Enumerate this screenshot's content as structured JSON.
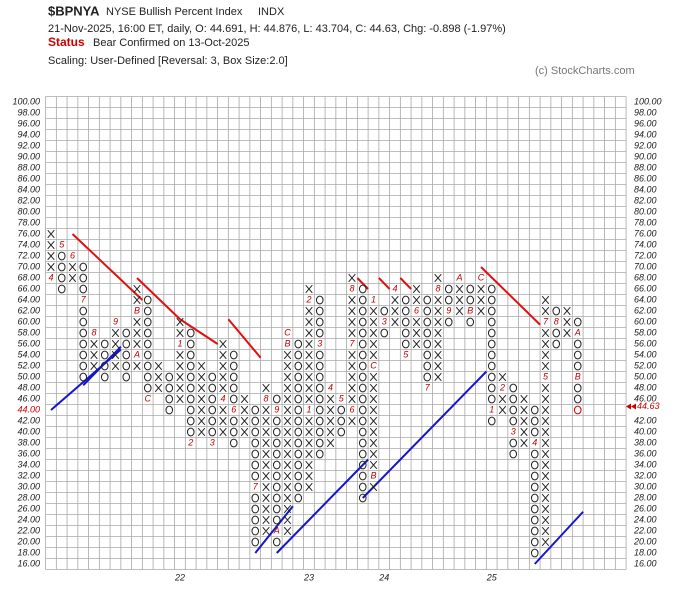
{
  "chart_data": {
    "type": "point-and-figure",
    "title": "$BPNYA",
    "subtitle": "NYSE Bullish Percent Index",
    "exchange": "INDX",
    "info": "21-Nov-2025, 16:00 ET, daily, O: 44.691, H: 44.876, L: 43.704, C: 44.63, Chg: -0.898 (-1.97%)",
    "status_label": "Status",
    "status": "Bear Confirmed on 13-Oct-2025",
    "scaling": "Scaling: User-Defined [Reversal: 3, Box Size:2.0]",
    "copyright": "(c) StockCharts.com",
    "box_size": 2,
    "grid": true,
    "ylim": [
      15,
      101
    ],
    "yticks": [
      {
        "value": 100,
        "label": "100.00"
      },
      {
        "value": 98,
        "label": "98.00"
      },
      {
        "value": 96,
        "label": "96.00"
      },
      {
        "value": 94,
        "label": "94.00"
      },
      {
        "value": 92,
        "label": "92.00"
      },
      {
        "value": 90,
        "label": "90.00"
      },
      {
        "value": 88,
        "label": "88.00"
      },
      {
        "value": 86,
        "label": "86.00"
      },
      {
        "value": 84,
        "label": "84.00"
      },
      {
        "value": 82,
        "label": "82.00"
      },
      {
        "value": 80,
        "label": "80.00"
      },
      {
        "value": 78,
        "label": "78.00"
      },
      {
        "value": 76,
        "label": "76.00"
      },
      {
        "value": 74,
        "label": "74.00"
      },
      {
        "value": 72,
        "label": "72.00"
      },
      {
        "value": 70,
        "label": "70.00"
      },
      {
        "value": 68,
        "label": "68.00"
      },
      {
        "value": 66,
        "label": "66.00"
      },
      {
        "value": 64,
        "label": "64.00"
      },
      {
        "value": 62,
        "label": "62.00"
      },
      {
        "value": 60,
        "label": "60.00"
      },
      {
        "value": 58,
        "label": "58.00"
      },
      {
        "value": 56,
        "label": "56.00"
      },
      {
        "value": 54,
        "label": "54.00"
      },
      {
        "value": 52,
        "label": "52.00"
      },
      {
        "value": 50,
        "label": "50.00"
      },
      {
        "value": 48,
        "label": "48.00"
      },
      {
        "value": 46,
        "label": "46.00"
      },
      {
        "value": 44,
        "label": "44.00"
      },
      {
        "value": 42,
        "label": "42.00"
      },
      {
        "value": 40,
        "label": "40.00"
      },
      {
        "value": 38,
        "label": "38.00"
      },
      {
        "value": 36,
        "label": "36.00"
      },
      {
        "value": 34,
        "label": "34.00"
      },
      {
        "value": 32,
        "label": "32.00"
      },
      {
        "value": 30,
        "label": "30.00"
      },
      {
        "value": 28,
        "label": "28.00"
      },
      {
        "value": 26,
        "label": "26.00"
      },
      {
        "value": 24,
        "label": "24.00"
      },
      {
        "value": 22,
        "label": "22.00"
      },
      {
        "value": 20,
        "label": "20.00"
      },
      {
        "value": 18,
        "label": "18.00"
      },
      {
        "value": 16,
        "label": "16.00"
      }
    ],
    "current_box": 44,
    "last_price": 44.63,
    "xticks": [
      {
        "value": 12,
        "label": "22"
      },
      {
        "value": 24,
        "label": "23"
      },
      {
        "value": 31,
        "label": "24"
      },
      {
        "value": 41,
        "label": "25"
      }
    ],
    "columns": [
      {
        "type": "X",
        "low": 68,
        "high": 76,
        "markers": [
          {
            "value": 68,
            "label": "4"
          }
        ]
      },
      {
        "type": "O",
        "low": 66,
        "high": 74,
        "markers": [
          {
            "value": 74,
            "label": "5"
          }
        ]
      },
      {
        "type": "X",
        "low": 68,
        "high": 72,
        "markers": [
          {
            "value": 72,
            "label": "6"
          }
        ]
      },
      {
        "type": "O",
        "low": 50,
        "high": 70,
        "markers": [
          {
            "value": 64,
            "label": "7"
          }
        ]
      },
      {
        "type": "X",
        "low": 52,
        "high": 58,
        "markers": [
          {
            "value": 58,
            "label": "8"
          }
        ]
      },
      {
        "type": "O",
        "low": 50,
        "high": 56,
        "markers": []
      },
      {
        "type": "X",
        "low": 52,
        "high": 60,
        "markers": [
          {
            "value": 60,
            "label": "9"
          }
        ]
      },
      {
        "type": "O",
        "low": 50,
        "high": 58,
        "markers": []
      },
      {
        "type": "X",
        "low": 52,
        "high": 66,
        "markers": [
          {
            "value": 54,
            "label": "A"
          },
          {
            "value": 62,
            "label": "B"
          }
        ]
      },
      {
        "type": "O",
        "low": 46,
        "high": 64,
        "markers": [
          {
            "value": 46,
            "label": "C"
          }
        ]
      },
      {
        "type": "X",
        "low": 48,
        "high": 52,
        "markers": []
      },
      {
        "type": "O",
        "low": 44,
        "high": 50,
        "markers": []
      },
      {
        "type": "X",
        "low": 46,
        "high": 60,
        "markers": [
          {
            "value": 56,
            "label": "1"
          }
        ]
      },
      {
        "type": "O",
        "low": 38,
        "high": 58,
        "markers": [
          {
            "value": 38,
            "label": "2"
          }
        ]
      },
      {
        "type": "X",
        "low": 40,
        "high": 52,
        "markers": []
      },
      {
        "type": "O",
        "low": 38,
        "high": 50,
        "markers": [
          {
            "value": 38,
            "label": "3"
          }
        ]
      },
      {
        "type": "X",
        "low": 40,
        "high": 56,
        "markers": [
          {
            "value": 46,
            "label": "4"
          }
        ]
      },
      {
        "type": "O",
        "low": 38,
        "high": 54,
        "markers": [
          {
            "value": 44,
            "label": "6"
          }
        ]
      },
      {
        "type": "X",
        "low": 40,
        "high": 46,
        "markers": []
      },
      {
        "type": "O",
        "low": 20,
        "high": 44,
        "markers": [
          {
            "value": 30,
            "label": "7"
          }
        ]
      },
      {
        "type": "X",
        "low": 22,
        "high": 48,
        "markers": [
          {
            "value": 46,
            "label": "8"
          }
        ]
      },
      {
        "type": "O",
        "low": 20,
        "high": 46,
        "markers": [
          {
            "value": 44,
            "label": "9"
          },
          {
            "value": 22,
            "label": "A"
          }
        ]
      },
      {
        "type": "X",
        "low": 22,
        "high": 58,
        "markers": [
          {
            "value": 56,
            "label": "B"
          },
          {
            "value": 58,
            "label": "C"
          }
        ]
      },
      {
        "type": "O",
        "low": 28,
        "high": 56,
        "markers": []
      },
      {
        "type": "X",
        "low": 30,
        "high": 66,
        "markers": [
          {
            "value": 44,
            "label": "1"
          },
          {
            "value": 64,
            "label": "2"
          }
        ]
      },
      {
        "type": "O",
        "low": 36,
        "high": 64,
        "markers": [
          {
            "value": 56,
            "label": "3"
          }
        ]
      },
      {
        "type": "X",
        "low": 38,
        "high": 48,
        "markers": [
          {
            "value": 48,
            "label": "4"
          }
        ]
      },
      {
        "type": "O",
        "low": 40,
        "high": 46,
        "markers": [
          {
            "value": 46,
            "label": "5"
          }
        ]
      },
      {
        "type": "X",
        "low": 42,
        "high": 68,
        "markers": [
          {
            "value": 44,
            "label": "6"
          },
          {
            "value": 56,
            "label": "7"
          },
          {
            "value": 66,
            "label": "8"
          }
        ]
      },
      {
        "type": "O",
        "low": 28,
        "high": 66,
        "markers": []
      },
      {
        "type": "X",
        "low": 30,
        "high": 64,
        "markers": [
          {
            "value": 32,
            "label": "B"
          },
          {
            "value": 52,
            "label": "C"
          },
          {
            "value": 64,
            "label": "1"
          }
        ]
      },
      {
        "type": "O",
        "low": 58,
        "high": 62,
        "markers": [
          {
            "value": 60,
            "label": "3"
          }
        ]
      },
      {
        "type": "X",
        "low": 60,
        "high": 66,
        "markers": [
          {
            "value": 66,
            "label": "4"
          }
        ]
      },
      {
        "type": "O",
        "low": 54,
        "high": 64,
        "markers": [
          {
            "value": 54,
            "label": "5"
          }
        ]
      },
      {
        "type": "X",
        "low": 56,
        "high": 66,
        "markers": [
          {
            "value": 62,
            "label": "6"
          }
        ]
      },
      {
        "type": "O",
        "low": 48,
        "high": 64,
        "markers": [
          {
            "value": 48,
            "label": "7"
          }
        ]
      },
      {
        "type": "X",
        "low": 50,
        "high": 68,
        "markers": [
          {
            "value": 66,
            "label": "8"
          }
        ]
      },
      {
        "type": "O",
        "low": 60,
        "high": 66,
        "markers": [
          {
            "value": 62,
            "label": "9"
          }
        ]
      },
      {
        "type": "X",
        "low": 62,
        "high": 68,
        "markers": [
          {
            "value": 68,
            "label": "A"
          }
        ]
      },
      {
        "type": "O",
        "low": 60,
        "high": 66,
        "markers": [
          {
            "value": 62,
            "label": "B"
          }
        ]
      },
      {
        "type": "X",
        "low": 62,
        "high": 68,
        "markers": [
          {
            "value": 68,
            "label": "C"
          }
        ]
      },
      {
        "type": "O",
        "low": 42,
        "high": 66,
        "markers": [
          {
            "value": 44,
            "label": "1"
          }
        ]
      },
      {
        "type": "X",
        "low": 44,
        "high": 50,
        "markers": [
          {
            "value": 48,
            "label": "2"
          }
        ]
      },
      {
        "type": "O",
        "low": 36,
        "high": 48,
        "markers": [
          {
            "value": 40,
            "label": "3"
          }
        ]
      },
      {
        "type": "X",
        "low": 38,
        "high": 46,
        "markers": []
      },
      {
        "type": "O",
        "low": 18,
        "high": 44,
        "markers": [
          {
            "value": 38,
            "label": "4"
          }
        ]
      },
      {
        "type": "X",
        "low": 20,
        "high": 64,
        "markers": [
          {
            "value": 50,
            "label": "5"
          },
          {
            "value": 60,
            "label": "7"
          }
        ]
      },
      {
        "type": "O",
        "low": 56,
        "high": 62,
        "markers": [
          {
            "value": 60,
            "label": "8"
          }
        ]
      },
      {
        "type": "X",
        "low": 58,
        "high": 62,
        "markers": []
      },
      {
        "type": "O",
        "low": 44,
        "high": 60,
        "markers": [
          {
            "value": 58,
            "label": "A"
          },
          {
            "value": 50,
            "label": "B"
          }
        ]
      }
    ],
    "trendlines": [
      {
        "color": "#1515d0",
        "x": [
          0,
          6.5
        ],
        "y": [
          44,
          55
        ]
      },
      {
        "color": "#1515d0",
        "x": [
          3,
          6.5
        ],
        "y": [
          48.5,
          55.5
        ]
      },
      {
        "color": "#1515d0",
        "x": [
          19,
          22.5
        ],
        "y": [
          18,
          26.5
        ]
      },
      {
        "color": "#1515d0",
        "x": [
          21,
          29.5
        ],
        "y": [
          18,
          35
        ]
      },
      {
        "color": "#1515d0",
        "x": [
          29,
          40.5
        ],
        "y": [
          28,
          51
        ]
      },
      {
        "color": "#1515d0",
        "x": [
          45,
          49.5
        ],
        "y": [
          16,
          25.5
        ]
      },
      {
        "color": "#e01010",
        "x": [
          2,
          8.5
        ],
        "y": [
          76,
          64
        ]
      },
      {
        "color": "#e01010",
        "x": [
          8,
          12
        ],
        "y": [
          68,
          60.5
        ]
      },
      {
        "color": "#e01010",
        "x": [
          12,
          15.5
        ],
        "y": [
          60.5,
          56
        ]
      },
      {
        "color": "#e01010",
        "x": [
          16.5,
          19.5
        ],
        "y": [
          60.5,
          53.5
        ]
      },
      {
        "color": "#e01010",
        "x": [
          28.5,
          29.5
        ],
        "y": [
          68,
          66
        ]
      },
      {
        "color": "#e01010",
        "x": [
          30.5,
          31.5
        ],
        "y": [
          68,
          66
        ]
      },
      {
        "color": "#e01010",
        "x": [
          32.5,
          33.5
        ],
        "y": [
          68,
          66
        ]
      },
      {
        "color": "#e01010",
        "x": [
          40,
          45.5
        ],
        "y": [
          70,
          59.5
        ]
      }
    ]
  }
}
